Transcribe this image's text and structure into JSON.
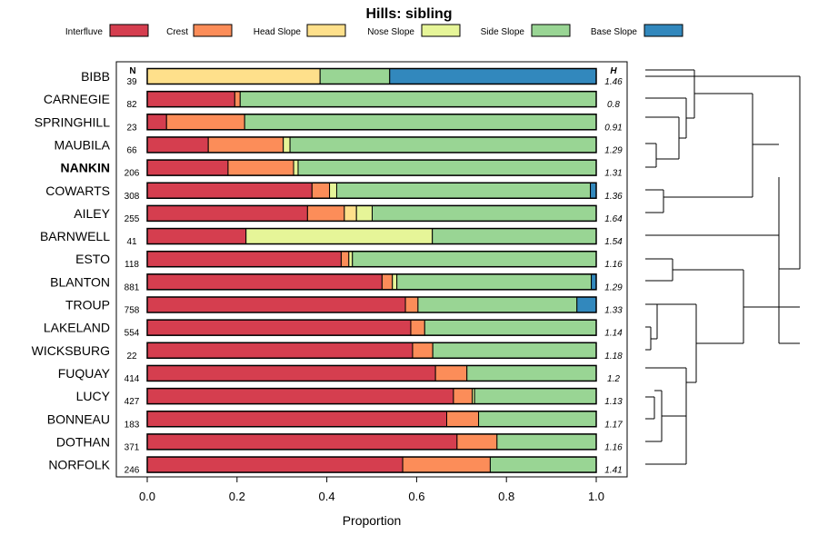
{
  "chart_data": {
    "type": "bar",
    "orientation": "horizontal",
    "stacked": true,
    "title": "Hills: sibling",
    "xlabel": "Proportion",
    "ylabel": "",
    "xlim": [
      0,
      1
    ],
    "x_ticks": [
      "0.0",
      "0.2",
      "0.4",
      "0.6",
      "0.8",
      "1.0"
    ],
    "n_header": "N",
    "h_header": "H",
    "legend_position": "top",
    "series": [
      {
        "name": "Interfluve",
        "color": "#D53E4F"
      },
      {
        "name": "Crest",
        "color": "#FC8D59"
      },
      {
        "name": "Head Slope",
        "color": "#FEE08B"
      },
      {
        "name": "Nose Slope",
        "color": "#E6F598"
      },
      {
        "name": "Side Slope",
        "color": "#99D594"
      },
      {
        "name": "Base Slope",
        "color": "#3288BD"
      }
    ],
    "rows": [
      {
        "name": "BIBB",
        "n": "39",
        "h": "1.46",
        "bold": false,
        "values": [
          0,
          0,
          0.385,
          0,
          0.155,
          0.46
        ]
      },
      {
        "name": "CARNEGIE",
        "n": "82",
        "h": "0.8",
        "bold": false,
        "values": [
          0.195,
          0.012,
          0,
          0,
          0.793,
          0
        ]
      },
      {
        "name": "SPRINGHILL",
        "n": "23",
        "h": "0.91",
        "bold": false,
        "values": [
          0.043,
          0.174,
          0,
          0,
          0.783,
          0
        ]
      },
      {
        "name": "MAUBILA",
        "n": "66",
        "h": "1.29",
        "bold": false,
        "values": [
          0.136,
          0.167,
          0,
          0.015,
          0.682,
          0
        ]
      },
      {
        "name": "NANKIN",
        "n": "206",
        "h": "1.31",
        "bold": true,
        "values": [
          0.18,
          0.146,
          0,
          0.01,
          0.664,
          0
        ]
      },
      {
        "name": "COWARTS",
        "n": "308",
        "h": "1.36",
        "bold": false,
        "values": [
          0.367,
          0.039,
          0,
          0.016,
          0.565,
          0.013
        ]
      },
      {
        "name": "AILEY",
        "n": "255",
        "h": "1.64",
        "bold": false,
        "values": [
          0.357,
          0.082,
          0.027,
          0.035,
          0.499,
          0
        ]
      },
      {
        "name": "BARNWELL",
        "n": "41",
        "h": "1.54",
        "bold": false,
        "values": [
          0.22,
          0,
          0,
          0.415,
          0.365,
          0
        ]
      },
      {
        "name": "ESTO",
        "n": "118",
        "h": "1.16",
        "bold": false,
        "values": [
          0.432,
          0.017,
          0,
          0.008,
          0.543,
          0
        ]
      },
      {
        "name": "BLANTON",
        "n": "881",
        "h": "1.29",
        "bold": false,
        "values": [
          0.523,
          0.023,
          0,
          0.01,
          0.433,
          0.011
        ]
      },
      {
        "name": "TROUP",
        "n": "758",
        "h": "1.33",
        "bold": false,
        "values": [
          0.575,
          0.028,
          0,
          0,
          0.354,
          0.043
        ]
      },
      {
        "name": "LAKELAND",
        "n": "554",
        "h": "1.14",
        "bold": false,
        "values": [
          0.587,
          0.031,
          0,
          0,
          0.382,
          0
        ]
      },
      {
        "name": "WICKSBURG",
        "n": "22",
        "h": "1.18",
        "bold": false,
        "values": [
          0.591,
          0.045,
          0,
          0,
          0.364,
          0
        ]
      },
      {
        "name": "FUQUAY",
        "n": "414",
        "h": "1.2",
        "bold": false,
        "values": [
          0.642,
          0.07,
          0,
          0,
          0.288,
          0
        ]
      },
      {
        "name": "LUCY",
        "n": "427",
        "h": "1.13",
        "bold": false,
        "values": [
          0.682,
          0.042,
          0,
          0.005,
          0.271,
          0
        ]
      },
      {
        "name": "BONNEAU",
        "n": "183",
        "h": "1.17",
        "bold": false,
        "values": [
          0.667,
          0.071,
          0,
          0,
          0.262,
          0
        ]
      },
      {
        "name": "DOTHAN",
        "n": "371",
        "h": "1.16",
        "bold": false,
        "values": [
          0.69,
          0.089,
          0,
          0,
          0.221,
          0
        ]
      },
      {
        "name": "NORFOLK",
        "n": "246",
        "h": "1.41",
        "bold": false,
        "values": [
          0.569,
          0.195,
          0,
          0,
          0.236,
          0
        ]
      }
    ]
  }
}
